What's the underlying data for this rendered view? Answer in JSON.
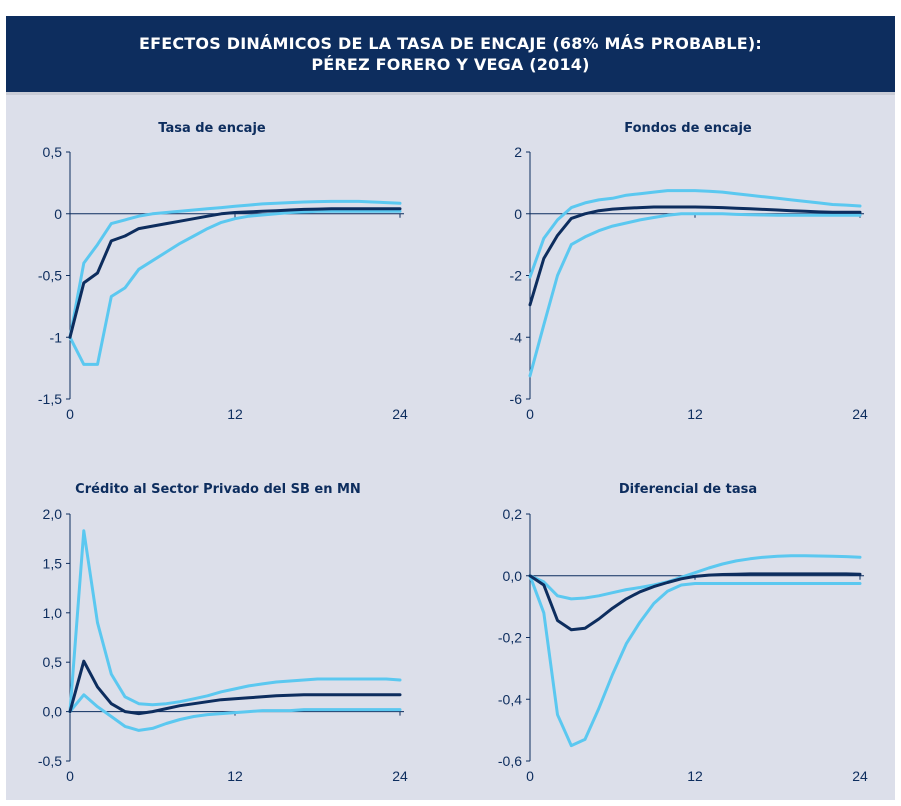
{
  "header": {
    "title_line1": "EFECTOS DINÁMICOS DE LA TASA DE ENCAJE (68% MÁS PROBABLE):",
    "title_line2": "PÉREZ FORERO Y VEGA (2014)"
  },
  "colors": {
    "header_bg": "#0d2d5e",
    "panel_bg": "#dcdfea",
    "median": "#0d2d5e",
    "band": "#5bc8f0"
  },
  "chart_data": [
    {
      "type": "line",
      "title": "Tasa de encaje",
      "ylim": [
        -1.5,
        0.5
      ],
      "yticks": [
        0.5,
        0,
        -0.5,
        -1,
        -1.5
      ],
      "yticklabels": [
        "0,5",
        "0",
        "-0,5",
        "-1",
        "-1,5"
      ],
      "xlim": [
        0,
        24
      ],
      "xticks": [
        0,
        12,
        24
      ],
      "xticklabels": [
        "0",
        "12",
        "24"
      ],
      "x": [
        0,
        1,
        2,
        3,
        4,
        5,
        6,
        7,
        8,
        9,
        10,
        11,
        12,
        13,
        14,
        15,
        16,
        17,
        18,
        19,
        20,
        21,
        22,
        23,
        24
      ],
      "series": [
        {
          "role": "upper",
          "values": [
            -1.0,
            -0.4,
            -0.25,
            -0.08,
            -0.05,
            -0.02,
            0.0,
            0.01,
            0.02,
            0.03,
            0.04,
            0.05,
            0.06,
            0.07,
            0.08,
            0.085,
            0.09,
            0.095,
            0.098,
            0.1,
            0.1,
            0.1,
            0.095,
            0.09,
            0.085
          ]
        },
        {
          "role": "median",
          "values": [
            -1.0,
            -0.56,
            -0.48,
            -0.22,
            -0.18,
            -0.12,
            -0.1,
            -0.08,
            -0.06,
            -0.04,
            -0.02,
            0.0,
            0.01,
            0.015,
            0.02,
            0.025,
            0.03,
            0.035,
            0.038,
            0.04,
            0.04,
            0.04,
            0.04,
            0.04,
            0.04
          ]
        },
        {
          "role": "lower",
          "values": [
            -1.0,
            -1.22,
            -1.22,
            -0.67,
            -0.6,
            -0.45,
            -0.38,
            -0.31,
            -0.24,
            -0.18,
            -0.12,
            -0.07,
            -0.04,
            -0.02,
            -0.01,
            0.0,
            0.01,
            0.015,
            0.02,
            0.02,
            0.02,
            0.02,
            0.02,
            0.02,
            0.02
          ]
        }
      ]
    },
    {
      "type": "line",
      "title": "Fondos de encaje",
      "ylim": [
        -6,
        2
      ],
      "yticks": [
        2,
        0,
        -2,
        -4,
        -6
      ],
      "yticklabels": [
        "2",
        "0",
        "-2",
        "-4",
        "-6"
      ],
      "xlim": [
        0,
        24
      ],
      "xticks": [
        0,
        12,
        24
      ],
      "xticklabels": [
        "0",
        "12",
        "24"
      ],
      "x": [
        0,
        1,
        2,
        3,
        4,
        5,
        6,
        7,
        8,
        9,
        10,
        11,
        12,
        13,
        14,
        15,
        16,
        17,
        18,
        19,
        20,
        21,
        22,
        23,
        24
      ],
      "series": [
        {
          "role": "upper",
          "values": [
            -2.05,
            -0.8,
            -0.2,
            0.2,
            0.35,
            0.45,
            0.5,
            0.6,
            0.65,
            0.7,
            0.75,
            0.75,
            0.75,
            0.73,
            0.7,
            0.65,
            0.6,
            0.55,
            0.5,
            0.45,
            0.4,
            0.35,
            0.3,
            0.28,
            0.25
          ]
        },
        {
          "role": "median",
          "values": [
            -2.95,
            -1.45,
            -0.7,
            -0.15,
            0.0,
            0.1,
            0.15,
            0.18,
            0.2,
            0.22,
            0.22,
            0.22,
            0.22,
            0.21,
            0.2,
            0.18,
            0.16,
            0.14,
            0.12,
            0.1,
            0.08,
            0.06,
            0.05,
            0.05,
            0.05
          ]
        },
        {
          "role": "lower",
          "values": [
            -5.25,
            -3.6,
            -2.0,
            -1.0,
            -0.75,
            -0.55,
            -0.4,
            -0.3,
            -0.2,
            -0.12,
            -0.05,
            0.0,
            0.0,
            0.0,
            0.0,
            -0.02,
            -0.03,
            -0.04,
            -0.05,
            -0.05,
            -0.05,
            -0.05,
            -0.05,
            -0.05,
            -0.05
          ]
        }
      ]
    },
    {
      "type": "line",
      "title": "Crédito al Sector Privado del SB en MN",
      "ylim": [
        -0.5,
        2.0
      ],
      "yticks": [
        2.0,
        1.5,
        1.0,
        0.5,
        0.0,
        -0.5
      ],
      "yticklabels": [
        "2,0",
        "1,5",
        "1,0",
        "0,5",
        "0,0",
        "-0,5"
      ],
      "xlim": [
        0,
        24
      ],
      "xticks": [
        0,
        12,
        24
      ],
      "xticklabels": [
        "0",
        "12",
        "24"
      ],
      "x": [
        0,
        1,
        2,
        3,
        4,
        5,
        6,
        7,
        8,
        9,
        10,
        11,
        12,
        13,
        14,
        15,
        16,
        17,
        18,
        19,
        20,
        21,
        22,
        23,
        24
      ],
      "series": [
        {
          "role": "upper",
          "values": [
            0.0,
            1.83,
            0.9,
            0.38,
            0.15,
            0.08,
            0.07,
            0.08,
            0.1,
            0.13,
            0.16,
            0.2,
            0.23,
            0.26,
            0.28,
            0.3,
            0.31,
            0.32,
            0.33,
            0.33,
            0.33,
            0.33,
            0.33,
            0.33,
            0.32
          ]
        },
        {
          "role": "median",
          "values": [
            0.0,
            0.51,
            0.25,
            0.08,
            0.0,
            -0.02,
            0.0,
            0.03,
            0.06,
            0.08,
            0.1,
            0.12,
            0.13,
            0.14,
            0.15,
            0.16,
            0.165,
            0.17,
            0.17,
            0.17,
            0.17,
            0.17,
            0.17,
            0.17,
            0.17
          ]
        },
        {
          "role": "lower",
          "values": [
            0.0,
            0.17,
            0.05,
            -0.05,
            -0.15,
            -0.19,
            -0.17,
            -0.12,
            -0.08,
            -0.05,
            -0.03,
            -0.02,
            -0.01,
            0.0,
            0.01,
            0.01,
            0.01,
            0.02,
            0.02,
            0.02,
            0.02,
            0.02,
            0.02,
            0.02,
            0.02
          ]
        }
      ]
    },
    {
      "type": "line",
      "title": "Diferencial de tasa",
      "ylim": [
        -0.6,
        0.2
      ],
      "yticks": [
        0.2,
        0.0,
        -0.2,
        -0.4,
        -0.6
      ],
      "yticklabels": [
        "0,2",
        "0,0",
        "-0,2",
        "-0,4",
        "-0,6"
      ],
      "xlim": [
        0,
        24
      ],
      "xticks": [
        0,
        12,
        24
      ],
      "xticklabels": [
        "0",
        "12",
        "24"
      ],
      "x": [
        0,
        1,
        2,
        3,
        4,
        5,
        6,
        7,
        8,
        9,
        10,
        11,
        12,
        13,
        14,
        15,
        16,
        17,
        18,
        19,
        20,
        21,
        22,
        23,
        24
      ],
      "series": [
        {
          "role": "upper",
          "values": [
            0.0,
            -0.02,
            -0.065,
            -0.075,
            -0.072,
            -0.065,
            -0.055,
            -0.045,
            -0.038,
            -0.03,
            -0.02,
            -0.005,
            0.01,
            0.025,
            0.038,
            0.048,
            0.055,
            0.06,
            0.063,
            0.065,
            0.065,
            0.064,
            0.063,
            0.062,
            0.06
          ]
        },
        {
          "role": "median",
          "values": [
            0.0,
            -0.03,
            -0.145,
            -0.175,
            -0.17,
            -0.14,
            -0.105,
            -0.075,
            -0.052,
            -0.035,
            -0.022,
            -0.01,
            -0.002,
            0.002,
            0.004,
            0.005,
            0.006,
            0.006,
            0.006,
            0.006,
            0.006,
            0.006,
            0.006,
            0.006,
            0.005
          ]
        },
        {
          "role": "lower",
          "values": [
            0.0,
            -0.12,
            -0.45,
            -0.55,
            -0.53,
            -0.43,
            -0.32,
            -0.22,
            -0.15,
            -0.09,
            -0.05,
            -0.03,
            -0.025,
            -0.025,
            -0.025,
            -0.025,
            -0.025,
            -0.025,
            -0.025,
            -0.025,
            -0.025,
            -0.025,
            -0.025,
            -0.025,
            -0.025
          ]
        }
      ]
    }
  ]
}
